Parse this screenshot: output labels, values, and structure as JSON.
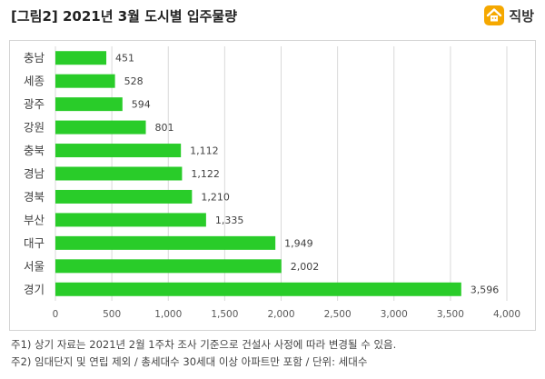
{
  "header": {
    "title": "[그림2] 2021년 3월 도시별 입주물량",
    "brand_name": "직방",
    "brand_icon": "house-icon",
    "brand_color": "#f5a800"
  },
  "chart_data": {
    "type": "bar",
    "orientation": "horizontal",
    "categories": [
      "충남",
      "세종",
      "광주",
      "강원",
      "충북",
      "경남",
      "경북",
      "부산",
      "대구",
      "서울",
      "경기"
    ],
    "values": [
      451,
      528,
      594,
      801,
      1112,
      1122,
      1210,
      1335,
      1949,
      2002,
      3596
    ],
    "value_labels": [
      "451",
      "528",
      "594",
      "801",
      "1,112",
      "1,122",
      "1,210",
      "1,335",
      "1,949",
      "2,002",
      "3,596"
    ],
    "xlim": [
      0,
      4000
    ],
    "x_ticks": [
      0,
      500,
      1000,
      1500,
      2000,
      2500,
      3000,
      3500,
      4000
    ],
    "x_tick_labels": [
      "0",
      "500",
      "1,000",
      "1,500",
      "2,000",
      "2,500",
      "3,000",
      "3,500",
      "4,000"
    ],
    "bar_color": "#29cc29",
    "grid": "vertical",
    "legend": "none",
    "title": "",
    "xlabel": "",
    "ylabel": ""
  },
  "notes": [
    "주1) 상기 자료는 2021년 2월 1주차 조사 기준으로 건설사 사정에 따라 변경될 수 있음.",
    "주2) 임대단지 및 연립 제외 / 총세대수 30세대 이상 아파트만 포함 / 단위: 세대수"
  ]
}
